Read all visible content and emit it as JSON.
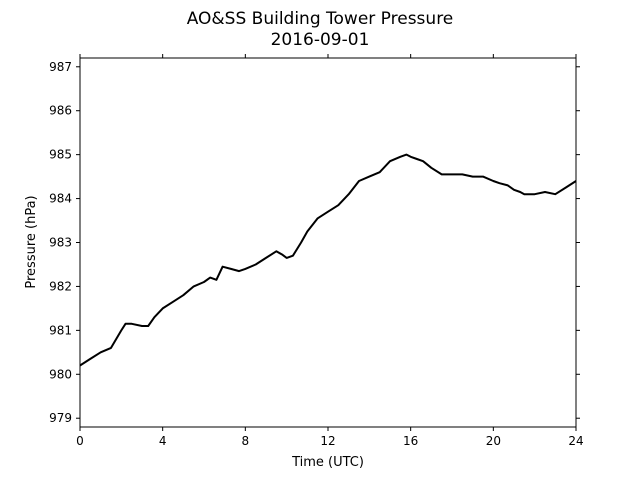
{
  "chart_data": {
    "type": "line",
    "title": "AO&SS Building Tower Pressure",
    "subtitle": "2016-09-01",
    "xlabel": "Time (UTC)",
    "ylabel": "Pressure (hPa)",
    "xlim": [
      0,
      24
    ],
    "ylim": [
      978.8,
      987.2
    ],
    "xticks": [
      0,
      4,
      8,
      12,
      16,
      20,
      24
    ],
    "yticks": [
      979,
      980,
      981,
      982,
      983,
      984,
      985,
      986,
      987
    ],
    "grid": false,
    "line_color": "#000000",
    "series": [
      {
        "x": [
          0,
          0.5,
          1,
          1.5,
          2,
          2.2,
          2.5,
          3,
          3.3,
          3.6,
          4,
          4.5,
          5,
          5.5,
          6,
          6.3,
          6.6,
          6.9,
          7.3,
          7.7,
          8,
          8.5,
          9,
          9.5,
          9.8,
          10,
          10.3,
          10.7,
          11,
          11.5,
          12,
          12.5,
          13,
          13.5,
          14,
          14.5,
          15,
          15.5,
          15.8,
          16,
          16.3,
          16.6,
          17,
          17.5,
          18,
          18.5,
          19,
          19.5,
          20,
          20.3,
          20.7,
          21,
          21.3,
          21.5,
          22,
          22.5,
          23,
          23.5,
          24
        ],
        "y": [
          980.2,
          980.35,
          980.5,
          980.6,
          981.0,
          981.15,
          981.15,
          981.1,
          981.1,
          981.3,
          981.5,
          981.65,
          981.8,
          982.0,
          982.1,
          982.2,
          982.15,
          982.45,
          982.4,
          982.35,
          982.4,
          982.5,
          982.65,
          982.8,
          982.72,
          982.65,
          982.7,
          983.0,
          983.25,
          983.55,
          983.7,
          983.85,
          984.1,
          984.4,
          984.5,
          984.6,
          984.85,
          984.95,
          985.0,
          984.95,
          984.9,
          984.85,
          984.7,
          984.55,
          984.55,
          984.55,
          984.5,
          984.5,
          984.4,
          984.35,
          984.3,
          984.2,
          984.15,
          984.1,
          984.1,
          984.15,
          984.1,
          984.25,
          984.4
        ]
      }
    ]
  }
}
